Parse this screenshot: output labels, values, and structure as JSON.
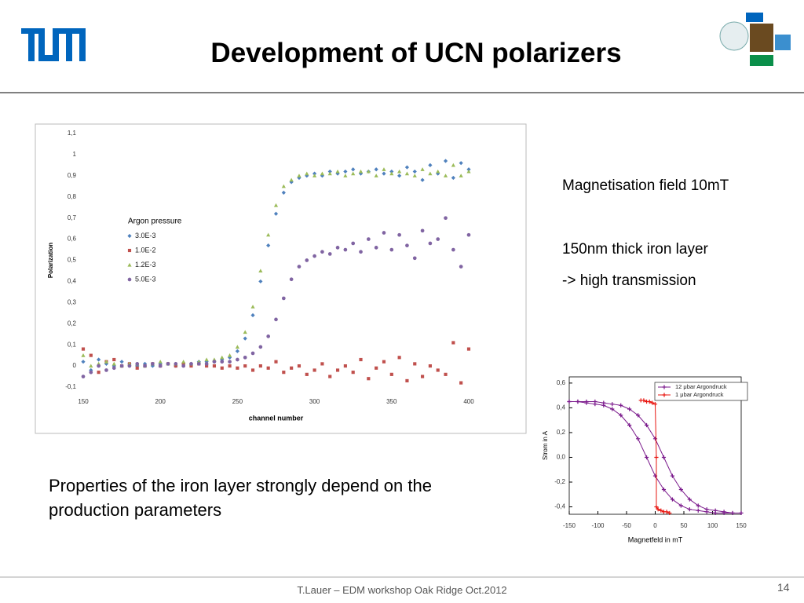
{
  "slide": {
    "title": "Development of UCN polarizers",
    "notes": [
      "Magnetisation field 10mT",
      "150nm thick iron layer",
      "-> high transmission"
    ],
    "paragraph": "Properties of the iron layer strongly depend on the production parameters",
    "footer": "T.Lauer – EDM workshop Oak Ridge Oct.2012",
    "page": "14"
  },
  "chart_data": [
    {
      "type": "scatter",
      "xlabel": "channel number",
      "ylabel": "Polarization",
      "legend_title": "Argon pressure",
      "xlim": [
        150,
        400
      ],
      "xticks": [
        150,
        200,
        250,
        300,
        350,
        400
      ],
      "ylim": [
        -0.1,
        1.1
      ],
      "yticks": [
        {
          "value": -0.1,
          "label": "-0,1"
        },
        0,
        {
          "value": 0.1,
          "label": "0,1"
        },
        {
          "value": 0.2,
          "label": "0,2"
        },
        {
          "value": 0.3,
          "label": "0,3"
        },
        {
          "value": 0.4,
          "label": "0,4"
        },
        {
          "value": 0.5,
          "label": "0,5"
        },
        {
          "value": 0.6,
          "label": "0,6"
        },
        {
          "value": 0.7,
          "label": "0,7"
        },
        {
          "value": 0.8,
          "label": "0,8"
        },
        {
          "value": 0.9,
          "label": "0,9"
        },
        1,
        {
          "value": 1.1,
          "label": "1,1"
        }
      ],
      "x": [
        150,
        155,
        160,
        165,
        170,
        175,
        180,
        185,
        190,
        195,
        200,
        205,
        210,
        215,
        220,
        225,
        230,
        235,
        240,
        245,
        250,
        255,
        260,
        265,
        270,
        275,
        280,
        285,
        290,
        295,
        300,
        305,
        310,
        315,
        320,
        325,
        330,
        335,
        340,
        345,
        350,
        355,
        360,
        365,
        370,
        375,
        380,
        385,
        390,
        395,
        400
      ],
      "series": [
        {
          "name": "3.0E-3",
          "color": "#4f81bd",
          "marker": "diamond",
          "values": [
            0.02,
            -0.02,
            0.03,
            0.01,
            0.0,
            0.02,
            0.01,
            0.0,
            0.01,
            0.0,
            0.01,
            0.01,
            0.0,
            0.01,
            0.01,
            0.02,
            0.02,
            0.02,
            0.03,
            0.04,
            0.07,
            0.13,
            0.24,
            0.4,
            0.57,
            0.72,
            0.82,
            0.87,
            0.89,
            0.9,
            0.91,
            0.9,
            0.92,
            0.91,
            0.92,
            0.93,
            0.91,
            0.92,
            0.93,
            0.91,
            0.92,
            0.9,
            0.94,
            0.92,
            0.88,
            0.95,
            0.91,
            0.97,
            0.89,
            0.96,
            0.93
          ]
        },
        {
          "name": "1.0E-2",
          "color": "#c0504d",
          "marker": "square",
          "values": [
            0.08,
            0.05,
            -0.03,
            0.02,
            0.03,
            0.0,
            0.01,
            -0.01,
            0.0,
            0.01,
            0.0,
            0.01,
            0.0,
            0.01,
            0.0,
            0.01,
            0.0,
            0.0,
            -0.01,
            0.0,
            -0.01,
            0.0,
            -0.02,
            0.0,
            -0.01,
            0.02,
            -0.03,
            -0.01,
            0.0,
            -0.04,
            -0.02,
            0.01,
            -0.05,
            -0.02,
            0.0,
            -0.03,
            0.03,
            -0.06,
            -0.01,
            0.02,
            -0.04,
            0.04,
            -0.07,
            0.01,
            -0.05,
            0.0,
            -0.02,
            -0.04,
            0.11,
            -0.08,
            0.08
          ]
        },
        {
          "name": "1.2E-3",
          "color": "#9bbb59",
          "marker": "triangle",
          "values": [
            0.05,
            0.0,
            0.01,
            0.02,
            0.01,
            0.0,
            0.01,
            0.01,
            0.0,
            0.01,
            0.02,
            0.01,
            0.01,
            0.02,
            0.01,
            0.02,
            0.03,
            0.03,
            0.04,
            0.05,
            0.09,
            0.16,
            0.28,
            0.45,
            0.62,
            0.76,
            0.85,
            0.88,
            0.9,
            0.91,
            0.9,
            0.91,
            0.91,
            0.92,
            0.9,
            0.91,
            0.92,
            0.92,
            0.9,
            0.93,
            0.91,
            0.92,
            0.91,
            0.9,
            0.93,
            0.91,
            0.92,
            0.9,
            0.95,
            0.9,
            0.92
          ]
        },
        {
          "name": "5.0E-3",
          "color": "#8064a2",
          "marker": "circle",
          "values": [
            -0.05,
            -0.03,
            0.0,
            -0.02,
            -0.01,
            0.0,
            0.0,
            0.01,
            0.0,
            0.01,
            0.0,
            0.01,
            0.01,
            0.0,
            0.01,
            0.01,
            0.01,
            0.02,
            0.02,
            0.02,
            0.03,
            0.04,
            0.06,
            0.09,
            0.14,
            0.22,
            0.32,
            0.41,
            0.47,
            0.5,
            0.52,
            0.54,
            0.53,
            0.56,
            0.55,
            0.58,
            0.54,
            0.6,
            0.56,
            0.63,
            0.55,
            0.62,
            0.57,
            0.51,
            0.64,
            0.58,
            0.6,
            0.7,
            0.55,
            0.47,
            0.62
          ]
        }
      ]
    },
    {
      "type": "line",
      "xlabel": "Magnetfeld in mT",
      "ylabel": "Strom in A",
      "xlim": [
        -150,
        150
      ],
      "xticks": [
        -150,
        -100,
        -50,
        0,
        50,
        100,
        150
      ],
      "ylim": [
        -0.46,
        0.65
      ],
      "yticks": [
        {
          "value": -0.4,
          "label": "-0,4"
        },
        {
          "value": -0.2,
          "label": "-0,2"
        },
        {
          "value": 0,
          "label": "0,0"
        },
        {
          "value": 0.2,
          "label": "0,2"
        },
        {
          "value": 0.4,
          "label": "0,4"
        },
        {
          "value": 0.6,
          "label": "0,6"
        }
      ],
      "series": [
        {
          "name": "12 μbar Argondruck",
          "color": "#7b1a8c",
          "marker": "plus",
          "x": [
            -150,
            -135,
            -120,
            -105,
            -90,
            -75,
            -60,
            -45,
            -30,
            -15,
            0,
            15,
            30,
            45,
            60,
            75,
            90,
            105,
            120,
            135,
            150,
            150,
            135,
            120,
            105,
            90,
            75,
            60,
            45,
            30,
            15,
            0,
            -15,
            -30,
            -45,
            -60,
            -75,
            -90,
            -105,
            -120,
            -135,
            -150
          ],
          "values": [
            0.45,
            0.45,
            0.44,
            0.43,
            0.42,
            0.39,
            0.34,
            0.26,
            0.15,
            0.0,
            -0.15,
            -0.26,
            -0.34,
            -0.39,
            -0.42,
            -0.43,
            -0.44,
            -0.45,
            -0.45,
            -0.45,
            -0.45,
            -0.45,
            -0.45,
            -0.44,
            -0.43,
            -0.42,
            -0.39,
            -0.34,
            -0.26,
            -0.15,
            0.0,
            0.15,
            0.26,
            0.34,
            0.39,
            0.42,
            0.43,
            0.44,
            0.45,
            0.45,
            0.45,
            0.45
          ]
        },
        {
          "name": "1 μbar Argondruck",
          "color": "#e8150f",
          "marker": "plus",
          "x": [
            -25,
            -20,
            -15,
            -10,
            -5,
            0,
            2,
            2,
            5,
            10,
            15,
            20,
            25
          ],
          "values": [
            0.46,
            0.46,
            0.45,
            0.45,
            0.44,
            0.43,
            0.0,
            -0.4,
            -0.42,
            -0.43,
            -0.44,
            -0.44,
            -0.45
          ]
        }
      ]
    }
  ]
}
